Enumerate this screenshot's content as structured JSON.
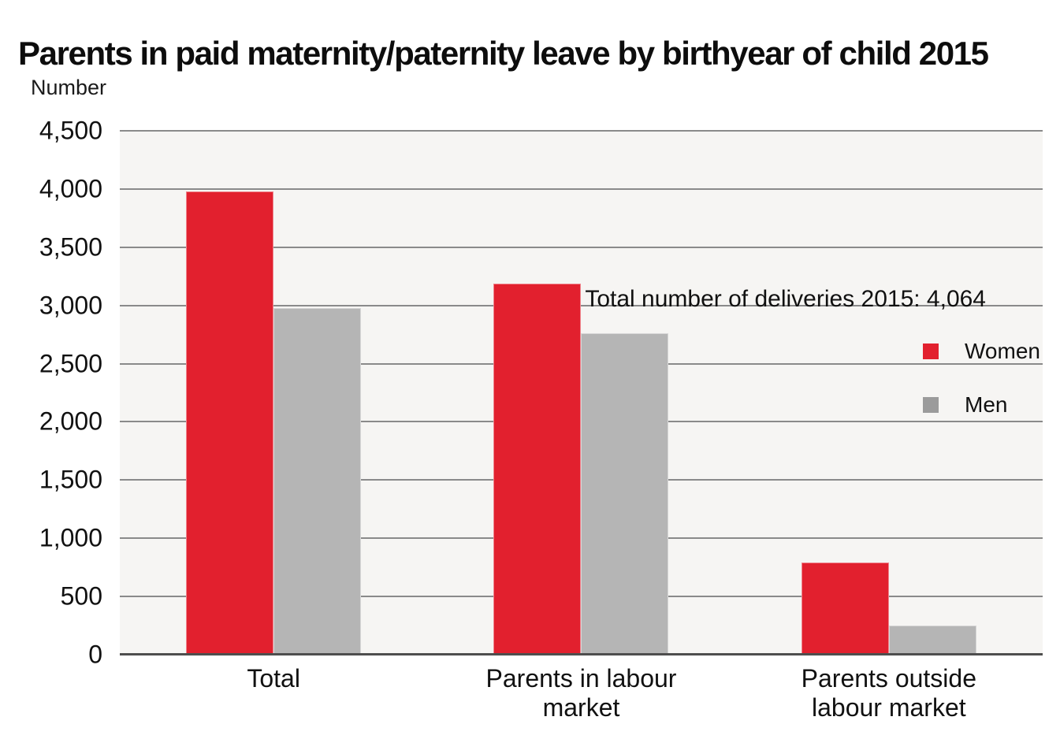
{
  "chart_data": {
    "type": "bar",
    "title": "Parents in paid maternity/paternity leave by birthyear of child 2015",
    "ylabel": "Number",
    "xlabel": "",
    "categories": [
      "Total",
      "Parents in labour\nmarket",
      "Parents outside\nlabour market"
    ],
    "series": [
      {
        "name": "Women",
        "color": "#e2202e",
        "values": [
          3980,
          3190,
          790
        ]
      },
      {
        "name": "Men",
        "color": "#b5b5b5",
        "values": [
          2980,
          2760,
          250
        ]
      }
    ],
    "annotation": "Total number of deliveries 2015: 4,064",
    "ylim": [
      0,
      4500
    ],
    "ytick_step": 500,
    "ytick_labels": [
      "0",
      "500",
      "1,000",
      "1,500",
      "2,000",
      "2,500",
      "3,000",
      "3,500",
      "4,000",
      "4,500"
    ],
    "grid": true,
    "legend_position": "upper-right-inside"
  },
  "legend": {
    "items": [
      {
        "label": "Women",
        "color": "#e2202e"
      },
      {
        "label": "Men",
        "color": "#9b9b9b"
      }
    ]
  },
  "colors": {
    "women_bar": "#e2202e",
    "men_bar": "#b5b5b5",
    "men_legend_swatch": "#9b9b9b",
    "gridline": "#8a8a8a",
    "baseline": "#4e4e4e",
    "plot_background": "#f6f5f3",
    "text": "#111111",
    "page_background": "#ffffff"
  }
}
